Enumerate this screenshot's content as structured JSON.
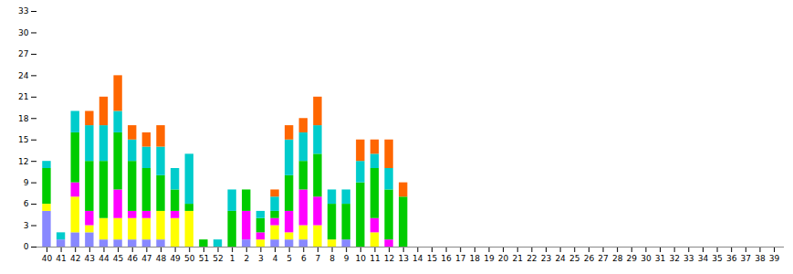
{
  "chart_data": {
    "type": "bar",
    "stacked": true,
    "grid": false,
    "categories": [
      "40",
      "41",
      "42",
      "43",
      "44",
      "45",
      "46",
      "47",
      "48",
      "49",
      "50",
      "51",
      "52",
      "1",
      "2",
      "3",
      "4",
      "5",
      "6",
      "7",
      "8",
      "9",
      "10",
      "11",
      "12",
      "13",
      "14",
      "15",
      "16",
      "17",
      "18",
      "19",
      "20",
      "21",
      "22",
      "23",
      "24",
      "25",
      "26",
      "27",
      "28",
      "29",
      "30",
      "31",
      "32",
      "33",
      "34",
      "35",
      "36",
      "37",
      "38",
      "39"
    ],
    "series": [
      {
        "color": "#8888ff",
        "values": [
          5,
          1,
          2,
          2,
          1,
          1,
          1,
          1,
          1,
          0,
          0,
          0,
          0,
          0,
          1,
          0,
          1,
          1,
          1,
          0,
          0,
          1,
          0,
          0,
          0,
          0,
          0,
          0,
          0,
          0,
          0,
          0,
          0,
          0,
          0,
          0,
          0,
          0,
          0,
          0,
          0,
          0,
          0,
          0,
          0,
          0,
          0,
          0,
          0,
          0,
          0,
          0
        ]
      },
      {
        "color": "#ffff00",
        "values": [
          1,
          0,
          5,
          1,
          3,
          3,
          3,
          3,
          4,
          4,
          5,
          0,
          0,
          0,
          0,
          1,
          2,
          1,
          2,
          3,
          1,
          0,
          0,
          2,
          0,
          0,
          0,
          0,
          0,
          0,
          0,
          0,
          0,
          0,
          0,
          0,
          0,
          0,
          0,
          0,
          0,
          0,
          0,
          0,
          0,
          0,
          0,
          0,
          0,
          0,
          0,
          0
        ]
      },
      {
        "color": "#ff00ff",
        "values": [
          0,
          0,
          2,
          2,
          0,
          4,
          1,
          1,
          0,
          1,
          0,
          0,
          0,
          0,
          4,
          1,
          1,
          3,
          5,
          4,
          0,
          0,
          0,
          2,
          1,
          0,
          0,
          0,
          0,
          0,
          0,
          0,
          0,
          0,
          0,
          0,
          0,
          0,
          0,
          0,
          0,
          0,
          0,
          0,
          0,
          0,
          0,
          0,
          0,
          0,
          0,
          0
        ]
      },
      {
        "color": "#00cc00",
        "values": [
          5,
          0,
          7,
          7,
          8,
          8,
          7,
          6,
          5,
          3,
          1,
          1,
          0,
          5,
          3,
          2,
          1,
          5,
          4,
          6,
          5,
          5,
          9,
          7,
          7,
          7,
          0,
          0,
          0,
          0,
          0,
          0,
          0,
          0,
          0,
          0,
          0,
          0,
          0,
          0,
          0,
          0,
          0,
          0,
          0,
          0,
          0,
          0,
          0,
          0,
          0,
          0
        ]
      },
      {
        "color": "#00cccc",
        "values": [
          1,
          1,
          3,
          5,
          5,
          3,
          3,
          3,
          4,
          3,
          7,
          0,
          1,
          3,
          0,
          1,
          2,
          5,
          4,
          4,
          2,
          2,
          3,
          2,
          3,
          0,
          0,
          0,
          0,
          0,
          0,
          0,
          0,
          0,
          0,
          0,
          0,
          0,
          0,
          0,
          0,
          0,
          0,
          0,
          0,
          0,
          0,
          0,
          0,
          0,
          0,
          0
        ]
      },
      {
        "color": "#ff6600",
        "values": [
          0,
          0,
          0,
          2,
          4,
          5,
          2,
          2,
          3,
          0,
          0,
          0,
          0,
          0,
          0,
          0,
          1,
          2,
          2,
          4,
          0,
          0,
          3,
          2,
          4,
          2,
          0,
          0,
          0,
          0,
          0,
          0,
          0,
          0,
          0,
          0,
          0,
          0,
          0,
          0,
          0,
          0,
          0,
          0,
          0,
          0,
          0,
          0,
          0,
          0,
          0,
          0
        ]
      }
    ],
    "ylim": [
      0,
      33
    ],
    "yticks": [
      0,
      3,
      6,
      9,
      12,
      15,
      18,
      21,
      24,
      27,
      30,
      33
    ]
  }
}
